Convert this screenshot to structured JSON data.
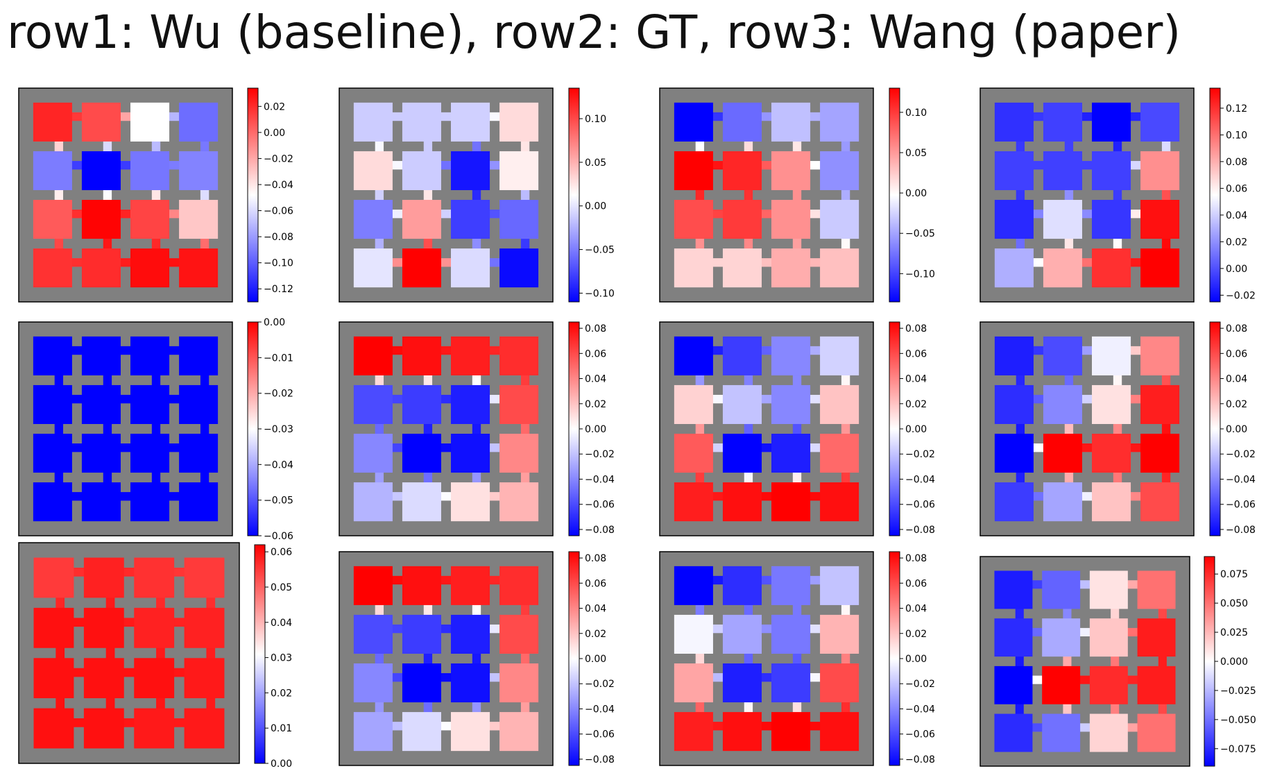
{
  "figure": {
    "title": "row1: Wu (baseline), row2: GT, row3: Wang (paper)"
  },
  "panels": [
    {
      "name": "r1c1",
      "values": [
        [
          0.022,
          0.01,
          -0.048,
          -0.095
        ],
        [
          -0.09,
          -0.13,
          -0.092,
          -0.088
        ],
        [
          0.005,
          0.033,
          0.012,
          -0.03
        ],
        [
          0.018,
          0.02,
          0.03,
          0.028
        ]
      ],
      "cbar_ticks": [
        "0.02",
        "0.00",
        "−0.02",
        "−0.04",
        "−0.06",
        "−0.08",
        "−0.10",
        "−0.12"
      ],
      "vmin": -0.13,
      "vmax": 0.034
    },
    {
      "name": "r1c2",
      "values": [
        [
          -0.012,
          -0.012,
          -0.01,
          0.03
        ],
        [
          0.03,
          -0.012,
          -0.1,
          0.02
        ],
        [
          -0.05,
          0.06,
          -0.08,
          -0.06
        ],
        [
          0.0,
          0.135,
          -0.005,
          -0.105
        ]
      ],
      "cbar_ticks": [
        "0.10",
        "0.05",
        "0.00",
        "−0.05",
        "−0.10"
      ],
      "vmin": -0.11,
      "vmax": 0.135
    },
    {
      "name": "r1c3",
      "values": [
        [
          -0.135,
          -0.08,
          -0.035,
          -0.05
        ],
        [
          0.13,
          0.11,
          0.055,
          -0.06
        ],
        [
          0.09,
          0.1,
          0.055,
          -0.03
        ],
        [
          0.02,
          0.02,
          0.04,
          0.03
        ]
      ],
      "cbar_ticks": [
        "0.10",
        "0.05",
        "0.00",
        "−0.05",
        "−0.10"
      ],
      "vmin": -0.135,
      "vmax": 0.13
    },
    {
      "name": "r1c4",
      "values": [
        [
          -0.01,
          -0.005,
          -0.025,
          -0.002
        ],
        [
          -0.005,
          -0.005,
          -0.005,
          0.09
        ],
        [
          -0.012,
          0.045,
          -0.008,
          0.13
        ],
        [
          0.03,
          0.08,
          0.12,
          0.135
        ]
      ],
      "cbar_ticks": [
        "0.12",
        "0.10",
        "0.08",
        "0.06",
        "0.04",
        "0.02",
        "0.00",
        "−0.02"
      ],
      "vmin": -0.025,
      "vmax": 0.135
    },
    {
      "name": "r2c1",
      "values": [
        [
          -0.06,
          -0.06,
          -0.06,
          -0.06
        ],
        [
          -0.06,
          -0.06,
          -0.06,
          -0.06
        ],
        [
          -0.06,
          -0.06,
          -0.06,
          -0.06
        ],
        [
          -0.06,
          -0.06,
          -0.06,
          -0.06
        ]
      ],
      "cbar_ticks": [
        "0.00",
        "−0.01",
        "−0.02",
        "−0.03",
        "−0.04",
        "−0.05",
        "−0.06"
      ],
      "vmin": -0.06,
      "vmax": 0.0
    },
    {
      "name": "r2c2",
      "values": [
        [
          0.085,
          0.08,
          0.075,
          0.07
        ],
        [
          -0.06,
          -0.065,
          -0.075,
          0.06
        ],
        [
          -0.04,
          -0.085,
          -0.08,
          0.04
        ],
        [
          -0.025,
          -0.012,
          0.01,
          0.025
        ]
      ],
      "cbar_ticks": [
        "0.08",
        "0.06",
        "0.04",
        "0.02",
        "0.00",
        "−0.02",
        "−0.04",
        "−0.06",
        "−0.08"
      ],
      "vmin": -0.085,
      "vmax": 0.085
    },
    {
      "name": "r2c3",
      "values": [
        [
          -0.085,
          -0.065,
          -0.04,
          -0.015
        ],
        [
          0.015,
          -0.02,
          -0.04,
          0.02
        ],
        [
          0.055,
          -0.085,
          -0.075,
          0.05
        ],
        [
          0.075,
          0.08,
          0.085,
          0.08
        ]
      ],
      "cbar_ticks": [
        "0.08",
        "0.06",
        "0.04",
        "0.02",
        "0.00",
        "−0.02",
        "−0.04",
        "−0.06",
        "−0.08"
      ],
      "vmin": -0.085,
      "vmax": 0.085
    },
    {
      "name": "r2c4",
      "values": [
        [
          -0.075,
          -0.06,
          -0.005,
          0.04
        ],
        [
          -0.07,
          -0.04,
          0.01,
          0.075
        ],
        [
          -0.085,
          0.085,
          0.07,
          0.085
        ],
        [
          -0.065,
          -0.03,
          0.02,
          0.06
        ]
      ],
      "cbar_ticks": [
        "0.08",
        "0.06",
        "0.04",
        "0.02",
        "0.00",
        "−0.02",
        "−0.04",
        "−0.06",
        "−0.08"
      ],
      "vmin": -0.085,
      "vmax": 0.085
    },
    {
      "name": "r3c1",
      "values": [
        [
          0.055,
          0.058,
          0.056,
          0.055
        ],
        [
          0.06,
          0.06,
          0.058,
          0.058
        ],
        [
          0.06,
          0.06,
          0.06,
          0.059
        ],
        [
          0.06,
          0.06,
          0.059,
          0.059
        ]
      ],
      "cbar_ticks": [
        "0.06",
        "0.05",
        "0.04",
        "0.03",
        "0.02",
        "0.01",
        "0.00"
      ],
      "vmin": 0.0,
      "vmax": 0.062
    },
    {
      "name": "r3c2",
      "values": [
        [
          0.085,
          0.08,
          0.075,
          0.07
        ],
        [
          -0.06,
          -0.065,
          -0.075,
          0.06
        ],
        [
          -0.04,
          -0.085,
          -0.08,
          0.04
        ],
        [
          -0.03,
          -0.012,
          0.01,
          0.025
        ]
      ],
      "cbar_ticks": [
        "0.08",
        "0.06",
        "0.04",
        "0.02",
        "0.00",
        "−0.02",
        "−0.04",
        "−0.06",
        "−0.08"
      ],
      "vmin": -0.085,
      "vmax": 0.085
    },
    {
      "name": "r3c3",
      "values": [
        [
          -0.085,
          -0.07,
          -0.045,
          -0.02
        ],
        [
          -0.003,
          -0.03,
          -0.045,
          0.025
        ],
        [
          0.03,
          -0.075,
          -0.065,
          0.06
        ],
        [
          0.075,
          0.08,
          0.085,
          0.08
        ]
      ],
      "cbar_ticks": [
        "0.08",
        "0.06",
        "0.04",
        "0.02",
        "0.00",
        "−0.02",
        "−0.04",
        "−0.06",
        "−0.08"
      ],
      "vmin": -0.085,
      "vmax": 0.085
    },
    {
      "name": "r3c4",
      "values": [
        [
          -0.08,
          -0.055,
          0.01,
          0.05
        ],
        [
          -0.075,
          -0.03,
          0.02,
          0.08
        ],
        [
          -0.09,
          0.09,
          0.075,
          0.08
        ],
        [
          -0.075,
          -0.05,
          0.015,
          0.05
        ]
      ],
      "cbar_ticks": [
        "0.075",
        "0.050",
        "0.025",
        "0.000",
        "−0.025",
        "−0.050",
        "−0.075"
      ],
      "vmin": -0.09,
      "vmax": 0.09
    }
  ]
}
